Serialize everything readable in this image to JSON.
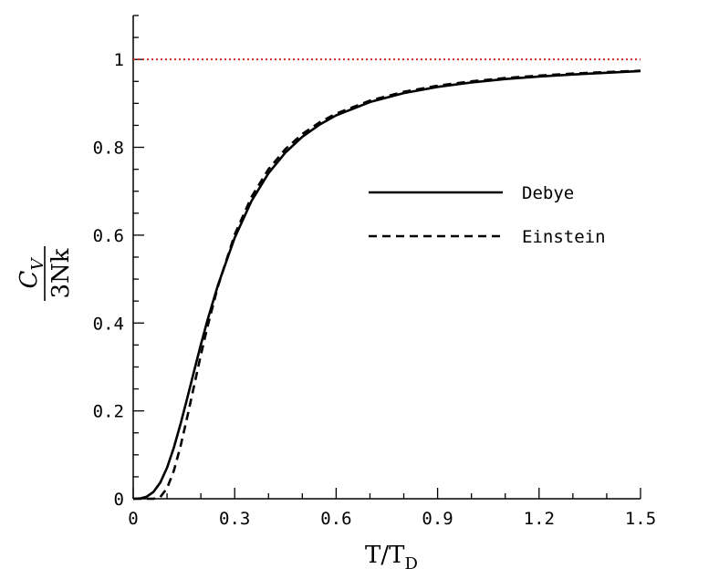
{
  "chart_data": {
    "type": "line",
    "xlabel": {
      "main": "T/T",
      "sub": "D"
    },
    "ylabel": {
      "numerator_main": "C",
      "numerator_sub": "V",
      "denominator": "3Nk"
    },
    "xlim": [
      0,
      1.5
    ],
    "ylim": [
      0,
      1.1
    ],
    "xticks": [
      0,
      0.3,
      0.6,
      0.9,
      1.2,
      1.5
    ],
    "xtick_labels": [
      "0",
      "0.3",
      "0.6",
      "0.9",
      "1.2",
      "1.5"
    ],
    "yticks": [
      0,
      0.2,
      0.4,
      0.6,
      0.8,
      1
    ],
    "ytick_labels": [
      "0",
      "0.2",
      "0.4",
      "0.6",
      "0.8",
      "1"
    ],
    "grid": false,
    "legend_position": "center-right",
    "reference_line": {
      "y": 1,
      "color": "#d62728",
      "style": "dotted"
    },
    "series": [
      {
        "name": "Debye",
        "style": "solid",
        "color": "#000000",
        "x": [
          0.0,
          0.02,
          0.04,
          0.06,
          0.08,
          0.1,
          0.12,
          0.14,
          0.16,
          0.18,
          0.2,
          0.22,
          0.25,
          0.3,
          0.35,
          0.4,
          0.45,
          0.5,
          0.55,
          0.6,
          0.7,
          0.8,
          0.9,
          1.0,
          1.1,
          1.2,
          1.3,
          1.4,
          1.5
        ],
        "y": [
          0.0,
          0.0006,
          0.0047,
          0.0156,
          0.0369,
          0.0708,
          0.1163,
          0.1705,
          0.2298,
          0.2906,
          0.3505,
          0.4075,
          0.4853,
          0.5939,
          0.6781,
          0.7412,
          0.7881,
          0.8237,
          0.8511,
          0.8727,
          0.9031,
          0.9234,
          0.9375,
          0.9476,
          0.9553,
          0.9612,
          0.9658,
          0.9696,
          0.9735
        ]
      },
      {
        "name": "Einstein",
        "style": "dashed",
        "color": "#000000",
        "x": [
          0.0,
          0.04,
          0.06,
          0.08,
          0.1,
          0.12,
          0.14,
          0.16,
          0.18,
          0.2,
          0.22,
          0.25,
          0.3,
          0.35,
          0.4,
          0.45,
          0.5,
          0.55,
          0.6,
          0.7,
          0.8,
          0.9,
          1.0,
          1.1,
          1.2,
          1.3,
          1.4,
          1.5
        ],
        "y": [
          0.0,
          0.0,
          0.0001,
          0.004,
          0.0241,
          0.0636,
          0.1199,
          0.1867,
          0.2572,
          0.3268,
          0.3925,
          0.4823,
          0.6012,
          0.6875,
          0.75,
          0.7959,
          0.8302,
          0.8563,
          0.8767,
          0.9064,
          0.9263,
          0.9402,
          0.9501,
          0.9576,
          0.9633,
          0.9677,
          0.9713,
          0.9742
        ]
      }
    ]
  }
}
